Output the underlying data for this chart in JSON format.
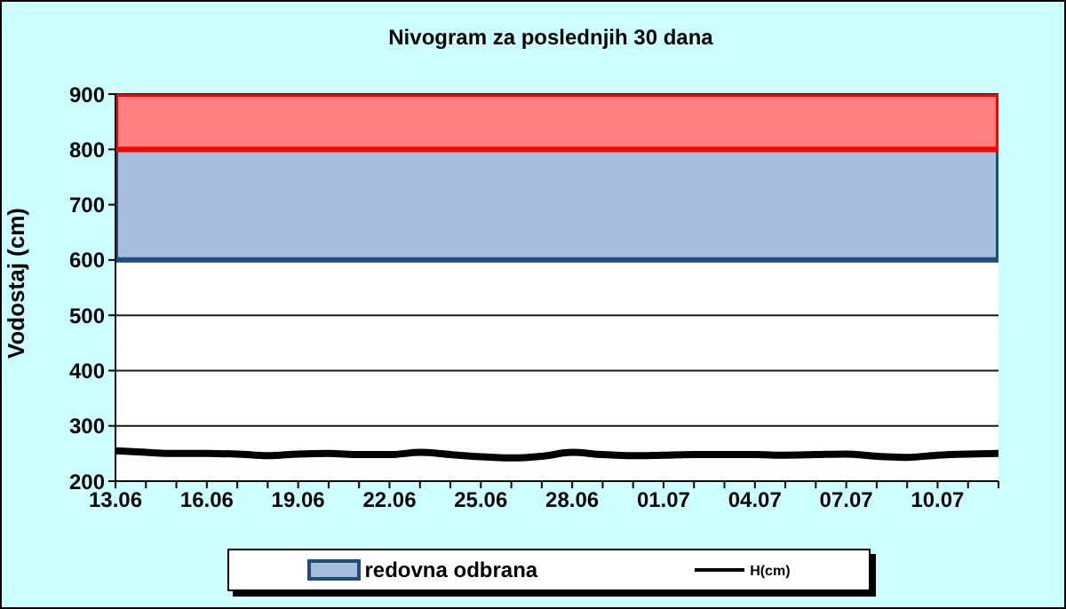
{
  "chart_data": {
    "type": "line",
    "title": "Nivogram za poslednjih 30 dana",
    "ylabel": "Vodostaj (cm)",
    "categories": [
      "13.06",
      null,
      null,
      "16.06",
      null,
      null,
      "19.06",
      null,
      null,
      "22.06",
      null,
      null,
      "25.06",
      null,
      null,
      "28.06",
      null,
      null,
      "01.07",
      null,
      null,
      "04.07",
      null,
      null,
      "07.07",
      null,
      null,
      "10.07",
      null,
      null
    ],
    "series": [
      {
        "name": "H(cm)",
        "color": "#000000",
        "values": [
          255,
          252,
          250,
          250,
          249,
          246,
          249,
          250,
          248,
          248,
          252,
          248,
          244,
          242,
          245,
          252,
          248,
          246,
          247,
          248,
          248,
          248,
          247,
          248,
          249,
          245,
          243,
          247,
          249,
          250
        ]
      }
    ],
    "ylim": [
      200,
      900
    ],
    "yticks": [
      200,
      300,
      400,
      500,
      600,
      700,
      800,
      900
    ],
    "grid": "y",
    "legend": "bottom",
    "bands": [
      {
        "axis": "y",
        "from": 600,
        "to": 800,
        "label": "redovna odbrana",
        "color": "#a6bedd"
      },
      {
        "axis": "y",
        "from": 800,
        "to": 900,
        "color": "#ff8080"
      }
    ]
  }
}
